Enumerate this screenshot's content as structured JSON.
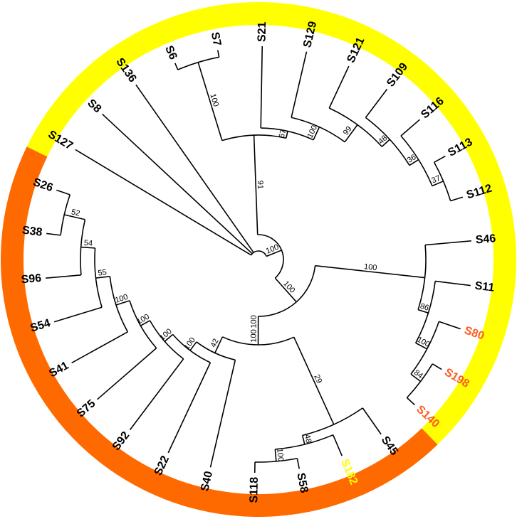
{
  "leaves": [
    {
      "label": "S127",
      "color": "#000000"
    },
    {
      "label": "S8",
      "color": "#000000"
    },
    {
      "label": "S136",
      "color": "#000000"
    },
    {
      "label": "S6",
      "color": "#000000"
    },
    {
      "label": "S7",
      "color": "#000000"
    },
    {
      "label": "S21",
      "color": "#000000"
    },
    {
      "label": "S129",
      "color": "#000000"
    },
    {
      "label": "S121",
      "color": "#000000"
    },
    {
      "label": "S109",
      "color": "#000000"
    },
    {
      "label": "S116",
      "color": "#000000"
    },
    {
      "label": "S113",
      "color": "#000000"
    },
    {
      "label": "S112",
      "color": "#000000"
    },
    {
      "label": "S46",
      "color": "#000000"
    },
    {
      "label": "S11",
      "color": "#000000"
    },
    {
      "label": "S80",
      "color": "#ff5a1f"
    },
    {
      "label": "S198",
      "color": "#ff5a1f"
    },
    {
      "label": "S140",
      "color": "#ff5a1f"
    },
    {
      "label": "S45",
      "color": "#000000"
    },
    {
      "label": "S182",
      "color": "#ffff00"
    },
    {
      "label": "S58",
      "color": "#000000"
    },
    {
      "label": "S118",
      "color": "#000000"
    },
    {
      "label": "S40",
      "color": "#000000"
    },
    {
      "label": "S22",
      "color": "#000000"
    },
    {
      "label": "S92",
      "color": "#000000"
    },
    {
      "label": "S75",
      "color": "#000000"
    },
    {
      "label": "S41",
      "color": "#000000"
    },
    {
      "label": "S54",
      "color": "#000000"
    },
    {
      "label": "S96",
      "color": "#000000"
    },
    {
      "label": "S38",
      "color": "#000000"
    },
    {
      "label": "S26",
      "color": "#000000"
    }
  ],
  "bootstrap": [
    100,
    91,
    100,
    67,
    100,
    99,
    48,
    36,
    37,
    100,
    100,
    86,
    100,
    84,
    100,
    100,
    29,
    48,
    100,
    42,
    100,
    100,
    100,
    100,
    55,
    54,
    52
  ]
}
